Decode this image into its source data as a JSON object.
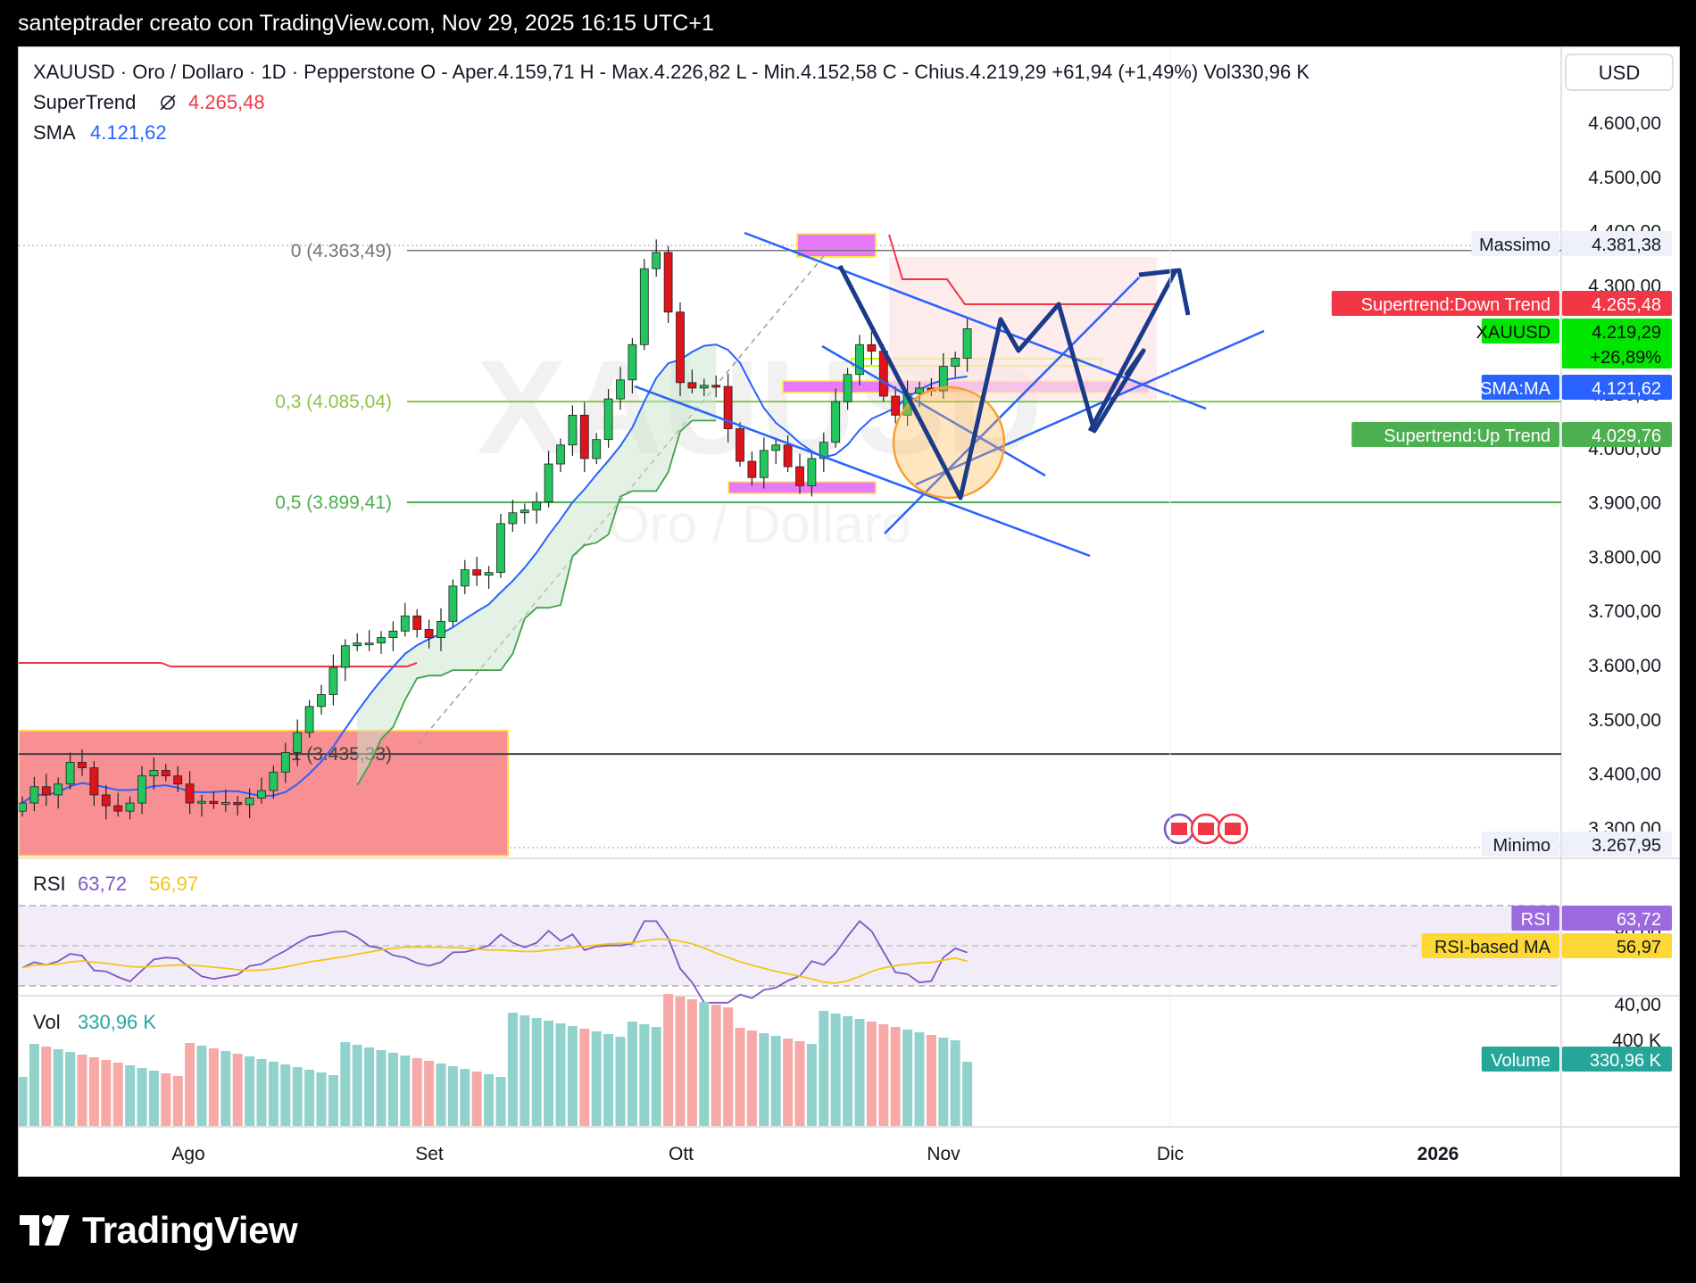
{
  "header": {
    "caption": "santeptrader creato con TradingView.com, Nov 29, 2025 16:15 UTC+1"
  },
  "legend": {
    "symbol": "XAUUSD · Oro / Dollaro · 1D · Pepperstone",
    "open": "O - Aper.4.159,71",
    "high": "H - Max.4.226,82",
    "low": "L - Min.4.152,58",
    "close": "C - Chius.4.219,29",
    "change": "+61,94 (+1,49%)",
    "volume": "Vol330,96 K",
    "supertrend_label": "SuperTrend",
    "supertrend_icon": "hidden-eye-icon",
    "supertrend_value": "4.265,48",
    "sma_label": "SMA",
    "sma_value": "4.121,62"
  },
  "currency_button": "USD",
  "colors": {
    "up": "#22c55e",
    "down": "#e0121a",
    "sma": "#2962ff",
    "supertrend_down": "#f23645",
    "supertrend_up": "#43a047",
    "rsi": "#7e57c2",
    "rsi_ma": "#f5c518",
    "volume_up": "#92d2cc",
    "volume_down": "#f7a9a7",
    "fib_mid": "#8bc34a",
    "fib_low": "#4caf50",
    "drawing_blue": "#2962ff",
    "arrow_navy": "#1a3a8a",
    "zone_magenta": "#e879f9",
    "zone_red": "#f77b80",
    "circle_orange": "#f7a030"
  },
  "price_axis": {
    "ticks": [
      "4.600,00",
      "4.500,00",
      "4.400,00",
      "4.300,00",
      "4.200,00",
      "4.100,00",
      "4.000,00",
      "3.900,00",
      "3.800,00",
      "3.700,00",
      "3.600,00",
      "3.500,00",
      "3.400,00",
      "3.300,00"
    ],
    "labels": [
      {
        "text": "Supertrend:Down Trend",
        "value": "4.265,48"
      },
      {
        "text": "XAUUSD",
        "value": "4.219,29",
        "value2": "+26,89%"
      },
      {
        "text": "SMA:MA",
        "value": "4.121,62"
      },
      {
        "text": "Supertrend:Up Trend",
        "value": "4.029,76"
      }
    ],
    "max_label": "Massimo",
    "max_value": "4.381,38",
    "min_label": "Minimo",
    "min_value": "3.267,95"
  },
  "fib": [
    {
      "label": "0 (4.363,49)",
      "level": 4363.49
    },
    {
      "label": "0,3 (4.085,04)",
      "level": 4085.04
    },
    {
      "label": "0,5 (3.899,41)",
      "level": 3899.41
    },
    {
      "label": "1 (3.435,33)",
      "level": 3435.33
    }
  ],
  "rsi": {
    "label": "RSI",
    "value": "63,72",
    "ma_value": "56,97",
    "ticks": [
      "80,00",
      "40,00"
    ],
    "tag_rsi": "RSI",
    "tag_ma": "RSI-based MA"
  },
  "volume": {
    "label": "Vol",
    "value": "330,96 K",
    "tick": "400 K",
    "tag": "Volume"
  },
  "time_axis": [
    "Ago",
    "Set",
    "Ott",
    "Nov",
    "Dic",
    "2026"
  ],
  "watermark": {
    "symbol": "XAUUSD",
    "name": "Oro / Dollaro"
  },
  "brand": "TradingView",
  "chart_data": {
    "type": "candlestick",
    "title": "XAUUSD · Oro / Dollaro · 1D · Pepperstone",
    "interval": "1D",
    "ylim": [
      3260,
      4620
    ],
    "series_close": [
      3345,
      3375,
      3360,
      3380,
      3420,
      3410,
      3360,
      3340,
      3330,
      3345,
      3395,
      3405,
      3395,
      3380,
      3345,
      3348,
      3344,
      3346,
      3342,
      3354,
      3368,
      3402,
      3438,
      3475,
      3523,
      3545,
      3595,
      3635,
      3640,
      3640,
      3650,
      3662,
      3690,
      3665,
      3650,
      3680,
      3745,
      3775,
      3765,
      3770,
      3860,
      3880,
      3885,
      3900,
      3970,
      4005,
      4060,
      3980,
      4015,
      4090,
      4125,
      4190,
      4330,
      4360,
      4250,
      4120,
      4110,
      4115,
      4113,
      4035,
      3975,
      3945,
      3995,
      4005,
      3965,
      3930,
      3980,
      4010,
      4085,
      4135,
      4190,
      4178,
      4095,
      4060,
      4100,
      4110,
      4105,
      4150,
      4165,
      4219.29
    ],
    "rsi_last": 63.72,
    "rsi_ma_last": 56.97,
    "volume_last_k": 330.96,
    "supertrend": 4265.48,
    "supertrend_up": 4029.76,
    "sma": 4121.62,
    "high_all": 4381.38,
    "low_all": 3267.95
  }
}
